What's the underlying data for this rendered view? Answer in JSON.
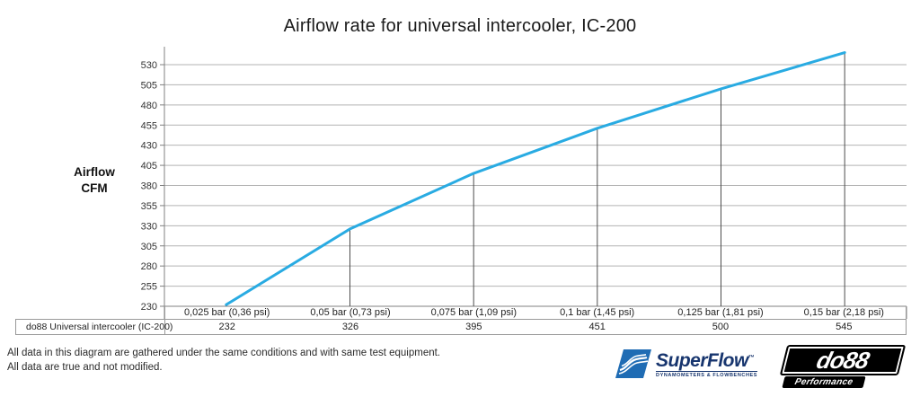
{
  "title": "Airflow rate for universal intercooler, IC-200",
  "chart_data": {
    "type": "line",
    "title": "Airflow rate for universal intercooler, IC-200",
    "ylabel_lines": [
      "Airflow",
      "CFM"
    ],
    "xlabel": "",
    "categories": [
      "0,025 bar (0,36 psi)",
      "0,05 bar (0,73 psi)",
      "0,075 bar (1,09 psi)",
      "0,1 bar (1,45 psi)",
      "0,125 bar (1,81 psi)",
      "0,15 bar (2,18 psi)"
    ],
    "series": [
      {
        "name": "do88 Universal intercooler (IC-200)",
        "color": "#29abe2",
        "values": [
          232,
          326,
          395,
          451,
          500,
          545
        ]
      }
    ],
    "yticks": [
      230,
      255,
      280,
      305,
      330,
      355,
      380,
      405,
      430,
      455,
      480,
      505,
      530
    ],
    "ylim": [
      230,
      552
    ],
    "grid": true,
    "legend_position": "bottom-left-table",
    "drop_lines_at_points": true
  },
  "footer": {
    "note_lines": [
      "All data in this diagram are gathered under the same conditions and with same test equipment.",
      "All data are true and not modified."
    ]
  },
  "logos": {
    "superflow": {
      "name": "SuperFlow",
      "trademark": "™",
      "subtitle": "DYNAMOMETERS & FLOWBENCHES",
      "brand_color": "#1f6cb4",
      "text_color": "#17356e"
    },
    "do88": {
      "name": "do88",
      "tagline": "Performance",
      "color": "#000000"
    }
  },
  "colors": {
    "series": "#29abe2",
    "gridline": "#b3b3b3",
    "axis": "#808080",
    "drop_line": "#4d4d4d",
    "table_border": "#999999"
  }
}
